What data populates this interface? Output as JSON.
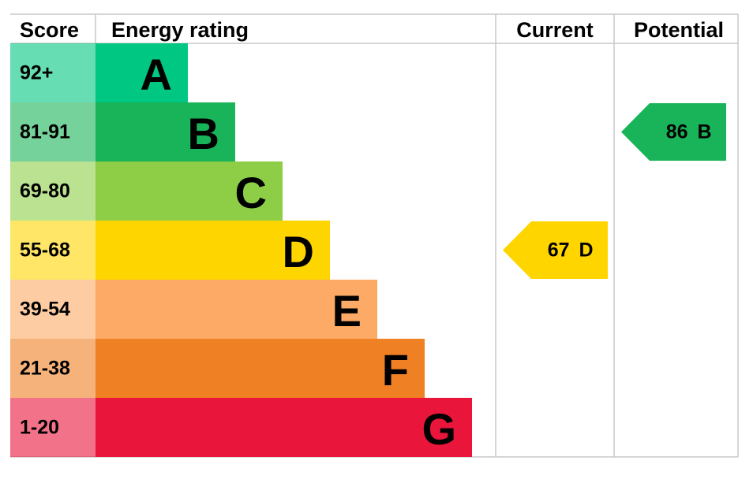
{
  "header": {
    "score": "Score",
    "rating": "Energy rating",
    "current": "Current",
    "potential": "Potential"
  },
  "bands": [
    {
      "score": "92+",
      "letter": "A",
      "color": "#00c781"
    },
    {
      "score": "81-91",
      "letter": "B",
      "color": "#19b459"
    },
    {
      "score": "69-80",
      "letter": "C",
      "color": "#8dce46"
    },
    {
      "score": "55-68",
      "letter": "D",
      "color": "#ffd500"
    },
    {
      "score": "39-54",
      "letter": "E",
      "color": "#fcaa65"
    },
    {
      "score": "21-38",
      "letter": "F",
      "color": "#ef8023"
    },
    {
      "score": "1-20",
      "letter": "G",
      "color": "#e9153b"
    }
  ],
  "current": {
    "value": 67,
    "letter": "D"
  },
  "potential": {
    "value": 86,
    "letter": "B"
  }
}
